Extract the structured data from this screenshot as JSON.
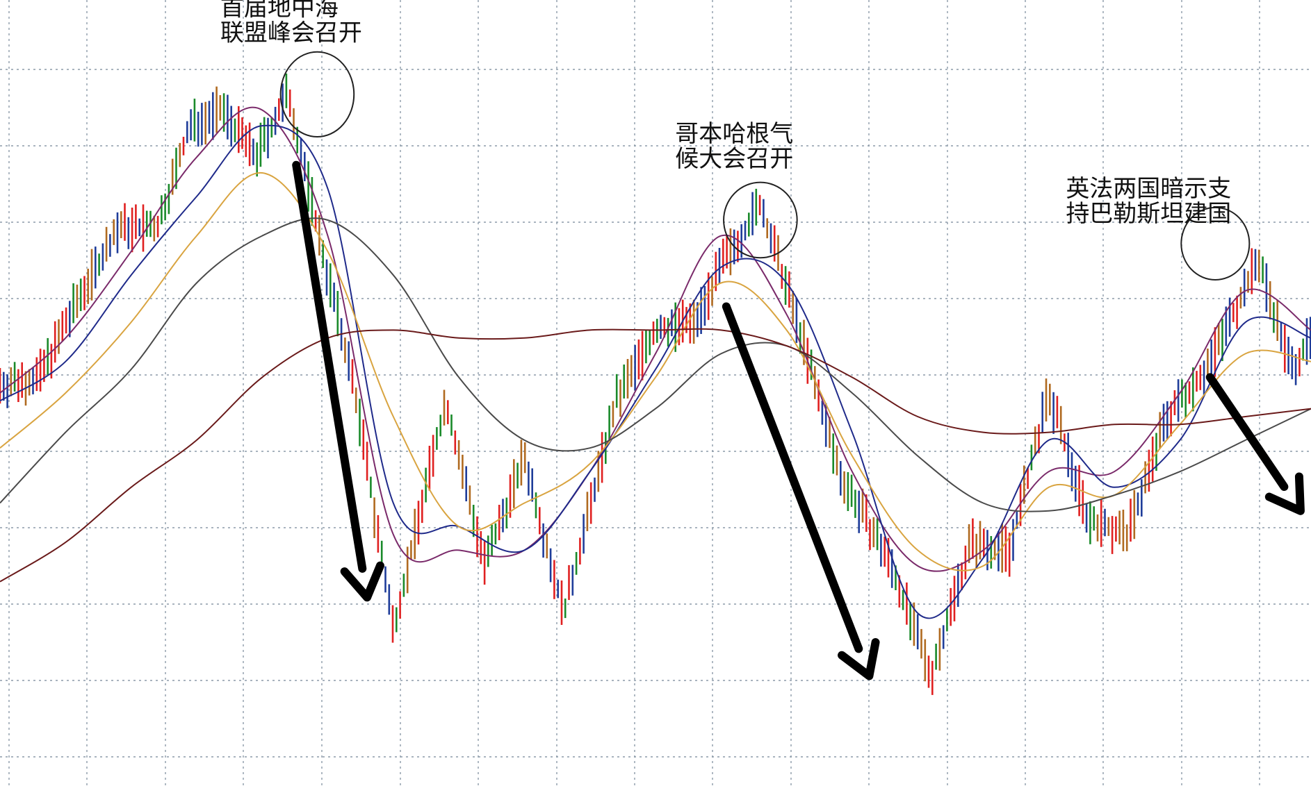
{
  "chart_data": {
    "type": "line",
    "title": "",
    "xlabel": "",
    "ylabel": "",
    "grid": true,
    "legend": "none",
    "x_range": [
      0,
      100
    ],
    "y_range": [
      0,
      100
    ],
    "colors": {
      "grid": "#8c9aa8",
      "up_bar": "#e02020",
      "down_bar": "#1a8a2a",
      "neutral_bar": "#1f3d9a",
      "arrow": "#000000",
      "circle": "#222222",
      "annotation": "#111111"
    },
    "price": {
      "x": [
        0,
        3,
        6,
        9,
        12,
        14.5,
        17,
        19.5,
        22,
        25,
        27,
        30,
        34,
        37,
        40,
        43,
        47,
        50,
        53,
        55,
        58,
        61,
        64,
        68,
        71,
        74,
        77,
        80,
        83,
        86,
        89,
        92,
        96,
        98.5,
        100
      ],
      "y": [
        51,
        52,
        62,
        71,
        71,
        84,
        86,
        80,
        88,
        65,
        51,
        20,
        49,
        28,
        42,
        22,
        49,
        58,
        59,
        66,
        74,
        58,
        40,
        28,
        14,
        31,
        30,
        50,
        34,
        32,
        47,
        53,
        67,
        53,
        57
      ]
    },
    "moving_averages": [
      {
        "color": "#7a2a6a",
        "x": [
          0,
          5,
          10,
          15,
          20,
          25,
          30,
          35,
          40,
          45,
          50,
          55,
          60,
          65,
          70,
          75,
          80,
          85,
          90,
          95,
          100
        ],
        "y": [
          50,
          57,
          68,
          80,
          86,
          70,
          32,
          30,
          30,
          40,
          55,
          70,
          60,
          40,
          28,
          30,
          40,
          40,
          50,
          63,
          58
        ]
      },
      {
        "color": "#1f2a8a",
        "x": [
          0,
          5,
          10,
          15,
          20,
          25,
          30,
          35,
          40,
          45,
          50,
          55,
          60,
          65,
          70,
          75,
          80,
          85,
          90,
          95,
          100
        ],
        "y": [
          49,
          54,
          65,
          75,
          84,
          76,
          36,
          33,
          30,
          40,
          53,
          66,
          64,
          45,
          22,
          29,
          44,
          38,
          44,
          59,
          57
        ]
      },
      {
        "color": "#d9a440",
        "x": [
          0,
          5,
          10,
          15,
          20,
          25,
          30,
          35,
          40,
          45,
          50,
          55,
          60,
          65,
          70,
          75,
          80,
          85,
          90,
          95,
          100
        ],
        "y": [
          43,
          50,
          59,
          70,
          78,
          68,
          47,
          33,
          36,
          41,
          52,
          64,
          58,
          42,
          30,
          28,
          38,
          37,
          46,
          55,
          54
        ]
      },
      {
        "color": "#4a4a4a",
        "x": [
          0,
          5,
          10,
          15,
          20,
          25,
          30,
          35,
          40,
          45,
          50,
          55,
          60,
          65,
          70,
          75,
          80,
          85,
          90,
          95,
          100
        ],
        "y": [
          36,
          45,
          53,
          64,
          70,
          72,
          65,
          52,
          44,
          43,
          48,
          55,
          56,
          50,
          42,
          36,
          35,
          37,
          40,
          44,
          48
        ]
      },
      {
        "color": "#6a1a1a",
        "x": [
          0,
          5,
          10,
          15,
          20,
          25,
          30,
          35,
          40,
          45,
          50,
          55,
          60,
          65,
          70,
          75,
          80,
          85,
          90,
          95,
          100
        ],
        "y": [
          26,
          31,
          38,
          44,
          52,
          57,
          58,
          57,
          57,
          58,
          58,
          58,
          56,
          52,
          47,
          45,
          45,
          46,
          46,
          47,
          48
        ]
      }
    ],
    "annotations": [
      {
        "line1": "首届地中海",
        "line2": "联盟峰会召开",
        "x": 16.8,
        "y": 98
      },
      {
        "line1": "哥本哈根气",
        "line2": "候大会召开",
        "x": 51.5,
        "y": 82
      },
      {
        "line1": "英法两国暗示支",
        "line2": "持巴勒斯坦建国",
        "x": 81.3,
        "y": 75
      }
    ],
    "circles": [
      {
        "x": 24.2,
        "y": 88,
        "rx": 2.8,
        "ry": 5.4
      },
      {
        "x": 58.0,
        "y": 72,
        "rx": 2.8,
        "ry": 4.8
      },
      {
        "x": 92.7,
        "y": 69,
        "rx": 2.6,
        "ry": 4.6
      }
    ],
    "arrows": [
      {
        "from": [
          22.6,
          79
        ],
        "to": [
          28.0,
          24
        ]
      },
      {
        "from": [
          55.4,
          61
        ],
        "to": [
          66.3,
          14
        ]
      },
      {
        "from": [
          92.3,
          52
        ],
        "to": [
          99.2,
          35
        ]
      }
    ]
  }
}
